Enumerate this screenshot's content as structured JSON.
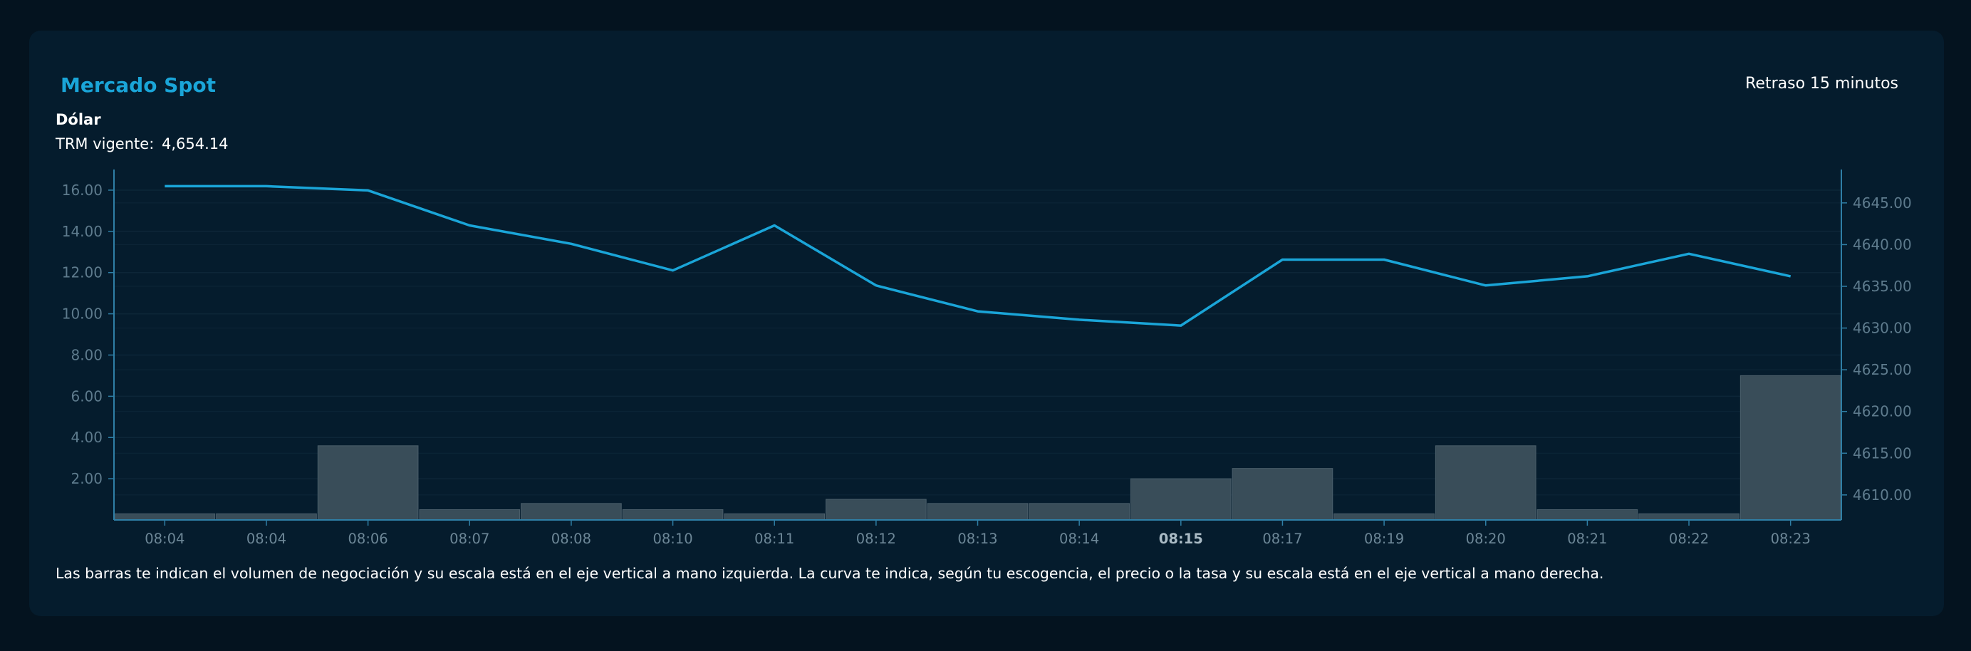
{
  "header": {
    "title": "Mercado Spot",
    "delay_label": "Retraso 15 minutos"
  },
  "subheader": {
    "currency": "Dólar",
    "trm_label": "TRM vigente:",
    "trm_value": "4,654.14"
  },
  "footnote": "Las barras te indican el volumen de negociación y su escala está en el eje vertical a mano izquierda. La curva te indica, según tu escogencia, el precio o la tasa y su escala está en el eje vertical a mano derecha.",
  "colors": {
    "line": "#1aa5d8",
    "bar": "#394d59",
    "axis": "#2f7fa6",
    "grid": "#0d2638"
  },
  "chart_data": {
    "type": "bar+line",
    "categories": [
      "08:04",
      "08:04",
      "08:06",
      "08:07",
      "08:08",
      "08:10",
      "08:11",
      "08:12",
      "08:13",
      "08:14",
      "08:15",
      "08:17",
      "08:19",
      "08:20",
      "08:21",
      "08:22",
      "08:23"
    ],
    "highlighted_category": "08:15",
    "series": [
      {
        "name": "Volumen",
        "type": "bar",
        "axis": "left",
        "values": [
          0.3,
          0.3,
          3.6,
          0.5,
          0.8,
          0.5,
          0.3,
          1.0,
          0.8,
          0.8,
          2.0,
          2.5,
          0.3,
          3.6,
          0.5,
          0.3,
          7.0
        ]
      },
      {
        "name": "Precio",
        "type": "line",
        "axis": "right",
        "values": [
          4647.0,
          4647.0,
          4646.5,
          4642.3,
          4640.1,
          4636.9,
          4642.3,
          4635.1,
          4632.0,
          4631.0,
          4630.3,
          4638.2,
          4638.2,
          4635.1,
          4636.2,
          4638.9,
          4636.2
        ]
      }
    ],
    "y_left": {
      "ticks": [
        "2.00",
        "4.00",
        "6.00",
        "8.00",
        "10.00",
        "12.00",
        "14.00",
        "16.00"
      ],
      "range": [
        0,
        17.0
      ]
    },
    "y_right": {
      "ticks": [
        "4610.00",
        "4615.00",
        "4620.00",
        "4625.00",
        "4630.00",
        "4635.00",
        "4640.00",
        "4645.00"
      ],
      "range": [
        4607.0,
        4649.0
      ]
    },
    "grid": true
  }
}
